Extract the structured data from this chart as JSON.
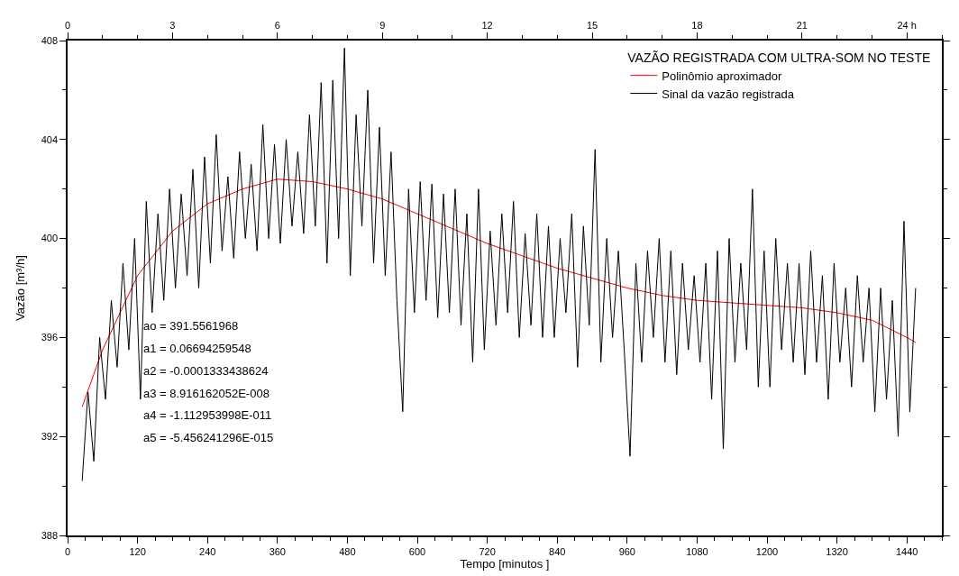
{
  "chart_data": {
    "type": "line",
    "legend_title": "VAZÃO REGISTRADA COM ULTRA-SOM NO TESTE",
    "xlabel": "Tempo [minutos ]",
    "ylabel": "Vazão [m³/h]",
    "xlim": [
      0,
      1500
    ],
    "xticks": [
      0,
      120,
      240,
      360,
      480,
      600,
      720,
      840,
      960,
      1080,
      1200,
      1320,
      1440
    ],
    "x2lim": [
      0,
      25
    ],
    "x2ticks": [
      0,
      3,
      6,
      9,
      12,
      15,
      18,
      21,
      {
        "value": 24,
        "label": "24 h"
      }
    ],
    "ylim": [
      388,
      408
    ],
    "yticks": [
      388,
      392,
      396,
      400,
      404,
      408
    ],
    "legend": "top right",
    "marker": "none",
    "line_style": "solid",
    "annotations": [
      "ao = 391.5561968",
      "a1 = 0.06694259548",
      "a2 = -0.0001333438624",
      "a3 = 8.916162052E-008",
      "a4 = -1.112953998E-011",
      "a5 = -5.456241296E-015"
    ],
    "series": [
      {
        "name": "Polinômio aproximador",
        "color": "#ff0000",
        "x": [
          25,
          60,
          120,
          180,
          240,
          300,
          360,
          420,
          480,
          540,
          600,
          660,
          720,
          780,
          840,
          900,
          960,
          1020,
          1080,
          1140,
          1200,
          1260,
          1320,
          1380,
          1440,
          1455
        ],
        "values": [
          393.2,
          395.5,
          398.5,
          400.3,
          401.4,
          402.0,
          402.4,
          402.3,
          402.0,
          401.6,
          401.0,
          400.4,
          399.8,
          399.3,
          398.8,
          398.4,
          398.0,
          397.7,
          397.5,
          397.4,
          397.3,
          397.2,
          397.0,
          396.7,
          396.0,
          395.8
        ]
      },
      {
        "name": "Sinal da vazão registrada",
        "color": "#000000",
        "x": [
          25,
          35,
          45,
          55,
          65,
          75,
          85,
          95,
          105,
          115,
          125,
          135,
          145,
          155,
          165,
          175,
          185,
          195,
          205,
          215,
          225,
          235,
          245,
          255,
          265,
          275,
          285,
          295,
          305,
          315,
          325,
          335,
          345,
          355,
          365,
          375,
          385,
          395,
          405,
          415,
          425,
          435,
          445,
          455,
          465,
          475,
          485,
          495,
          505,
          515,
          525,
          535,
          545,
          555,
          565,
          575,
          585,
          595,
          605,
          615,
          625,
          635,
          645,
          655,
          665,
          675,
          685,
          695,
          705,
          715,
          725,
          735,
          745,
          755,
          765,
          775,
          785,
          795,
          805,
          815,
          825,
          835,
          845,
          855,
          865,
          875,
          885,
          895,
          905,
          915,
          925,
          935,
          945,
          955,
          965,
          975,
          985,
          995,
          1005,
          1015,
          1025,
          1035,
          1045,
          1055,
          1065,
          1075,
          1085,
          1095,
          1105,
          1115,
          1125,
          1135,
          1145,
          1155,
          1165,
          1175,
          1185,
          1195,
          1205,
          1215,
          1225,
          1235,
          1245,
          1255,
          1265,
          1275,
          1285,
          1295,
          1305,
          1315,
          1325,
          1335,
          1345,
          1355,
          1365,
          1375,
          1385,
          1395,
          1405,
          1415,
          1425,
          1435,
          1445,
          1455
        ],
        "values": [
          390.2,
          393.8,
          391.0,
          396.0,
          393.5,
          397.5,
          394.8,
          399.0,
          395.5,
          400.0,
          393.5,
          401.5,
          397.0,
          401.0,
          397.5,
          402.0,
          398.0,
          401.8,
          398.5,
          402.8,
          398.0,
          403.3,
          399.0,
          404.2,
          399.5,
          402.5,
          399.2,
          403.5,
          400.0,
          403.0,
          399.5,
          404.6,
          400.0,
          403.8,
          399.8,
          404.0,
          400.5,
          403.5,
          400.2,
          405.0,
          400.5,
          406.3,
          399.0,
          406.4,
          400.0,
          407.7,
          398.5,
          405.0,
          400.5,
          406.0,
          399.0,
          404.5,
          398.5,
          403.5,
          397.5,
          393.0,
          402.0,
          397.0,
          402.3,
          397.5,
          402.2,
          396.8,
          401.8,
          397.0,
          402.0,
          396.5,
          401.0,
          395.0,
          402.0,
          395.5,
          400.3,
          396.5,
          401.0,
          397.0,
          401.5,
          396.0,
          400.2,
          396.5,
          401.0,
          396.0,
          400.5,
          396.0,
          400.0,
          397.0,
          401.0,
          394.8,
          400.5,
          396.5,
          403.6,
          395.0,
          400.0,
          396.0,
          399.5,
          395.5,
          391.2,
          399.0,
          395.0,
          399.5,
          396.0,
          400.0,
          395.0,
          399.5,
          394.5,
          399.0,
          395.5,
          398.5,
          395.0,
          399.0,
          393.5,
          399.5,
          391.5,
          400.0,
          395.0,
          399.0,
          395.5,
          402.0,
          394.0,
          399.5,
          394.0,
          400.0,
          395.5,
          399.0,
          395.0,
          399.0,
          394.5,
          399.5,
          395.0,
          398.5,
          393.5,
          399.0,
          395.0,
          398.0,
          394.0,
          398.5,
          395.0,
          398.0,
          393.0,
          398.0,
          393.5,
          397.5,
          392.0,
          400.7,
          393.0,
          398.0
        ]
      }
    ]
  }
}
